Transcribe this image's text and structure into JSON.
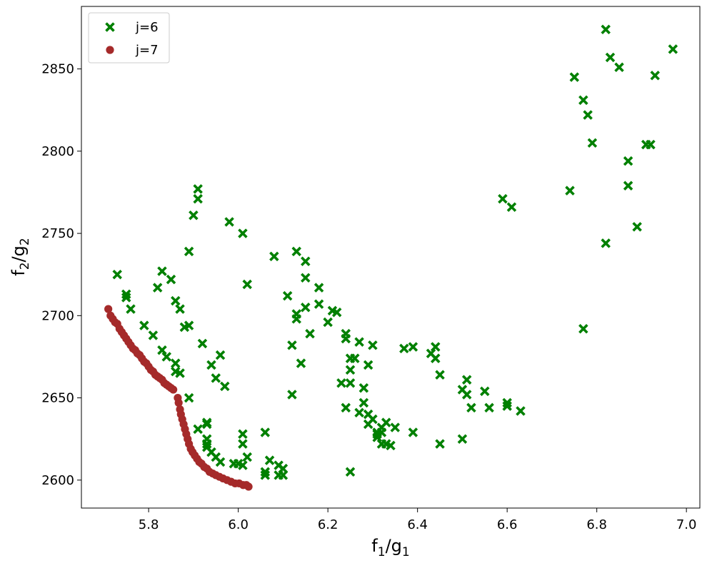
{
  "chart_data": {
    "type": "scatter",
    "xlabel_main": "f",
    "xlabel_sub1": "1",
    "xlabel_mid": "/g",
    "xlabel_sub2": "1",
    "ylabel_main": "f",
    "ylabel_sub1": "2",
    "ylabel_mid": "/g",
    "ylabel_sub2": "2",
    "xlim": [
      5.65,
      7.03
    ],
    "ylim": [
      2583,
      2888
    ],
    "x_ticks": [
      5.8,
      6.0,
      6.2,
      6.4,
      6.6,
      6.8,
      7.0
    ],
    "x_tick_labels": [
      "5.8",
      "6.0",
      "6.2",
      "6.4",
      "6.6",
      "6.8",
      "7.0"
    ],
    "y_ticks": [
      2600,
      2650,
      2700,
      2750,
      2800,
      2850
    ],
    "y_tick_labels": [
      "2600",
      "2650",
      "2700",
      "2750",
      "2800",
      "2850"
    ],
    "grid": false,
    "legend_position": "top-left",
    "series": [
      {
        "name": "j=6",
        "marker": "x-filled",
        "color": "#008000",
        "points": [
          [
            5.73,
            2725
          ],
          [
            5.75,
            2713
          ],
          [
            5.75,
            2711
          ],
          [
            5.76,
            2704
          ],
          [
            5.79,
            2694
          ],
          [
            5.81,
            2688
          ],
          [
            5.82,
            2717
          ],
          [
            5.83,
            2679
          ],
          [
            5.83,
            2727
          ],
          [
            5.84,
            2675
          ],
          [
            5.85,
            2722
          ],
          [
            5.86,
            2709
          ],
          [
            5.86,
            2666
          ],
          [
            5.86,
            2671
          ],
          [
            5.87,
            2665
          ],
          [
            5.87,
            2704
          ],
          [
            5.88,
            2693
          ],
          [
            5.89,
            2694
          ],
          [
            5.89,
            2650
          ],
          [
            5.89,
            2739
          ],
          [
            5.9,
            2761
          ],
          [
            5.91,
            2631
          ],
          [
            5.91,
            2777
          ],
          [
            5.91,
            2771
          ],
          [
            5.92,
            2683
          ],
          [
            5.93,
            2620
          ],
          [
            5.93,
            2625
          ],
          [
            5.93,
            2635
          ],
          [
            5.93,
            2634
          ],
          [
            5.93,
            2622
          ],
          [
            5.94,
            2670
          ],
          [
            5.94,
            2617
          ],
          [
            5.95,
            2614
          ],
          [
            5.95,
            2662
          ],
          [
            5.96,
            2676
          ],
          [
            5.96,
            2611
          ],
          [
            5.97,
            2657
          ],
          [
            5.98,
            2757
          ],
          [
            5.99,
            2610
          ],
          [
            6.0,
            2610
          ],
          [
            6.01,
            2750
          ],
          [
            6.01,
            2628
          ],
          [
            6.01,
            2622
          ],
          [
            6.02,
            2719
          ],
          [
            6.02,
            2614
          ],
          [
            6.01,
            2609
          ],
          [
            6.06,
            2629
          ],
          [
            6.06,
            2605
          ],
          [
            6.06,
            2603
          ],
          [
            6.07,
            2612
          ],
          [
            6.08,
            2736
          ],
          [
            6.09,
            2609
          ],
          [
            6.09,
            2603
          ],
          [
            6.1,
            2603
          ],
          [
            6.1,
            2607
          ],
          [
            6.11,
            2712
          ],
          [
            6.12,
            2682
          ],
          [
            6.12,
            2652
          ],
          [
            6.13,
            2701
          ],
          [
            6.13,
            2698
          ],
          [
            6.13,
            2739
          ],
          [
            6.14,
            2671
          ],
          [
            6.15,
            2733
          ],
          [
            6.15,
            2723
          ],
          [
            6.15,
            2705
          ],
          [
            6.16,
            2689
          ],
          [
            6.18,
            2717
          ],
          [
            6.18,
            2707
          ],
          [
            6.2,
            2696
          ],
          [
            6.21,
            2703
          ],
          [
            6.22,
            2702
          ],
          [
            6.23,
            2659
          ],
          [
            6.24,
            2689
          ],
          [
            6.24,
            2686
          ],
          [
            6.24,
            2644
          ],
          [
            6.25,
            2674
          ],
          [
            6.25,
            2667
          ],
          [
            6.25,
            2659
          ],
          [
            6.25,
            2605
          ],
          [
            6.26,
            2674
          ],
          [
            6.27,
            2641
          ],
          [
            6.27,
            2684
          ],
          [
            6.28,
            2656
          ],
          [
            6.28,
            2647
          ],
          [
            6.29,
            2640
          ],
          [
            6.29,
            2670
          ],
          [
            6.29,
            2634
          ],
          [
            6.3,
            2637
          ],
          [
            6.3,
            2682
          ],
          [
            6.31,
            2629
          ],
          [
            6.31,
            2626
          ],
          [
            6.31,
            2628
          ],
          [
            6.32,
            2632
          ],
          [
            6.32,
            2629
          ],
          [
            6.32,
            2622
          ],
          [
            6.33,
            2635
          ],
          [
            6.33,
            2622
          ],
          [
            6.34,
            2621
          ],
          [
            6.35,
            2632
          ],
          [
            6.37,
            2680
          ],
          [
            6.39,
            2629
          ],
          [
            6.39,
            2681
          ],
          [
            6.43,
            2677
          ],
          [
            6.44,
            2681
          ],
          [
            6.44,
            2674
          ],
          [
            6.45,
            2622
          ],
          [
            6.45,
            2664
          ],
          [
            6.5,
            2655
          ],
          [
            6.5,
            2625
          ],
          [
            6.51,
            2661
          ],
          [
            6.51,
            2652
          ],
          [
            6.52,
            2644
          ],
          [
            6.55,
            2654
          ],
          [
            6.56,
            2644
          ],
          [
            6.59,
            2771
          ],
          [
            6.6,
            2647
          ],
          [
            6.6,
            2645
          ],
          [
            6.61,
            2766
          ],
          [
            6.63,
            2642
          ],
          [
            6.74,
            2776
          ],
          [
            6.75,
            2845
          ],
          [
            6.77,
            2831
          ],
          [
            6.77,
            2692
          ],
          [
            6.78,
            2822
          ],
          [
            6.79,
            2805
          ],
          [
            6.82,
            2874
          ],
          [
            6.82,
            2744
          ],
          [
            6.83,
            2857
          ],
          [
            6.85,
            2851
          ],
          [
            6.87,
            2794
          ],
          [
            6.87,
            2779
          ],
          [
            6.89,
            2754
          ],
          [
            6.91,
            2804
          ],
          [
            6.92,
            2804
          ],
          [
            6.93,
            2846
          ],
          [
            6.97,
            2862
          ]
        ]
      },
      {
        "name": "j=7",
        "marker": "circle",
        "color": "#a52a2a",
        "points": [
          [
            5.71,
            2704
          ],
          [
            5.715,
            2700
          ],
          [
            5.72,
            2698
          ],
          [
            5.725,
            2696
          ],
          [
            5.73,
            2695
          ],
          [
            5.735,
            2692
          ],
          [
            5.74,
            2690
          ],
          [
            5.745,
            2688
          ],
          [
            5.75,
            2686
          ],
          [
            5.755,
            2684
          ],
          [
            5.76,
            2682
          ],
          [
            5.765,
            2680
          ],
          [
            5.77,
            2679
          ],
          [
            5.775,
            2677
          ],
          [
            5.78,
            2676
          ],
          [
            5.785,
            2674
          ],
          [
            5.79,
            2672
          ],
          [
            5.795,
            2671
          ],
          [
            5.8,
            2669
          ],
          [
            5.805,
            2667
          ],
          [
            5.81,
            2666
          ],
          [
            5.815,
            2664
          ],
          [
            5.82,
            2663
          ],
          [
            5.825,
            2662
          ],
          [
            5.83,
            2661
          ],
          [
            5.835,
            2659
          ],
          [
            5.84,
            2658
          ],
          [
            5.845,
            2657
          ],
          [
            5.85,
            2656
          ],
          [
            5.855,
            2655
          ],
          [
            5.865,
            2650
          ],
          [
            5.867,
            2647
          ],
          [
            5.87,
            2643
          ],
          [
            5.872,
            2640
          ],
          [
            5.875,
            2637
          ],
          [
            5.878,
            2634
          ],
          [
            5.881,
            2631
          ],
          [
            5.884,
            2628
          ],
          [
            5.887,
            2625
          ],
          [
            5.89,
            2622
          ],
          [
            5.894,
            2619
          ],
          [
            5.898,
            2617
          ],
          [
            5.903,
            2615
          ],
          [
            5.908,
            2613
          ],
          [
            5.913,
            2611
          ],
          [
            5.918,
            2610
          ],
          [
            5.924,
            2608
          ],
          [
            5.93,
            2607
          ],
          [
            5.936,
            2605
          ],
          [
            5.943,
            2604
          ],
          [
            5.95,
            2603
          ],
          [
            5.958,
            2602
          ],
          [
            5.966,
            2601
          ],
          [
            5.975,
            2600
          ],
          [
            5.984,
            2599
          ],
          [
            5.993,
            2598
          ],
          [
            6.002,
            2598
          ],
          [
            6.011,
            2597
          ],
          [
            6.018,
            2597
          ],
          [
            6.023,
            2596
          ]
        ]
      }
    ]
  }
}
